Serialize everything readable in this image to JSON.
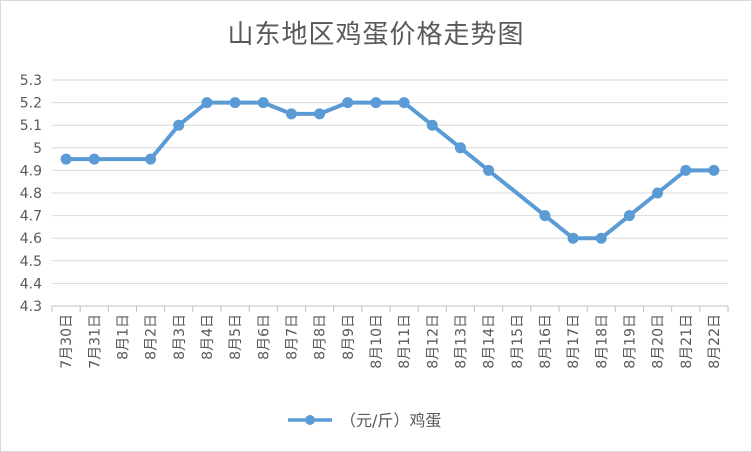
{
  "chart_data": {
    "type": "line",
    "title": "山东地区鸡蛋价格走势图",
    "xlabel": "",
    "ylabel": "",
    "categories": [
      "7月30日",
      "7月31日",
      "8月1日",
      "8月2日",
      "8月3日",
      "8月4日",
      "8月5日",
      "8月6日",
      "8月7日",
      "8月8日",
      "8月9日",
      "8月10日",
      "8月11日",
      "8月12日",
      "8月13日",
      "8月14日",
      "8月15日",
      "8月16日",
      "8月17日",
      "8月18日",
      "8月19日",
      "8月20日",
      "8月21日",
      "8月22日"
    ],
    "series": [
      {
        "name": "（元/斤）鸡蛋",
        "values": [
          4.95,
          4.95,
          null,
          4.95,
          5.1,
          5.2,
          5.2,
          5.2,
          5.15,
          5.15,
          5.2,
          5.2,
          5.2,
          5.1,
          5.0,
          4.9,
          null,
          4.7,
          4.6,
          4.6,
          4.7,
          4.8,
          4.9,
          4.9
        ],
        "color": "#5b9bd5"
      }
    ],
    "ylim": [
      4.3,
      5.3
    ],
    "yticks": [
      "5.3",
      "5.2",
      "5.1",
      "5",
      "4.9",
      "4.8",
      "4.7",
      "4.6",
      "4.5",
      "4.4",
      "4.3"
    ],
    "grid": true,
    "legend": "bottom"
  }
}
